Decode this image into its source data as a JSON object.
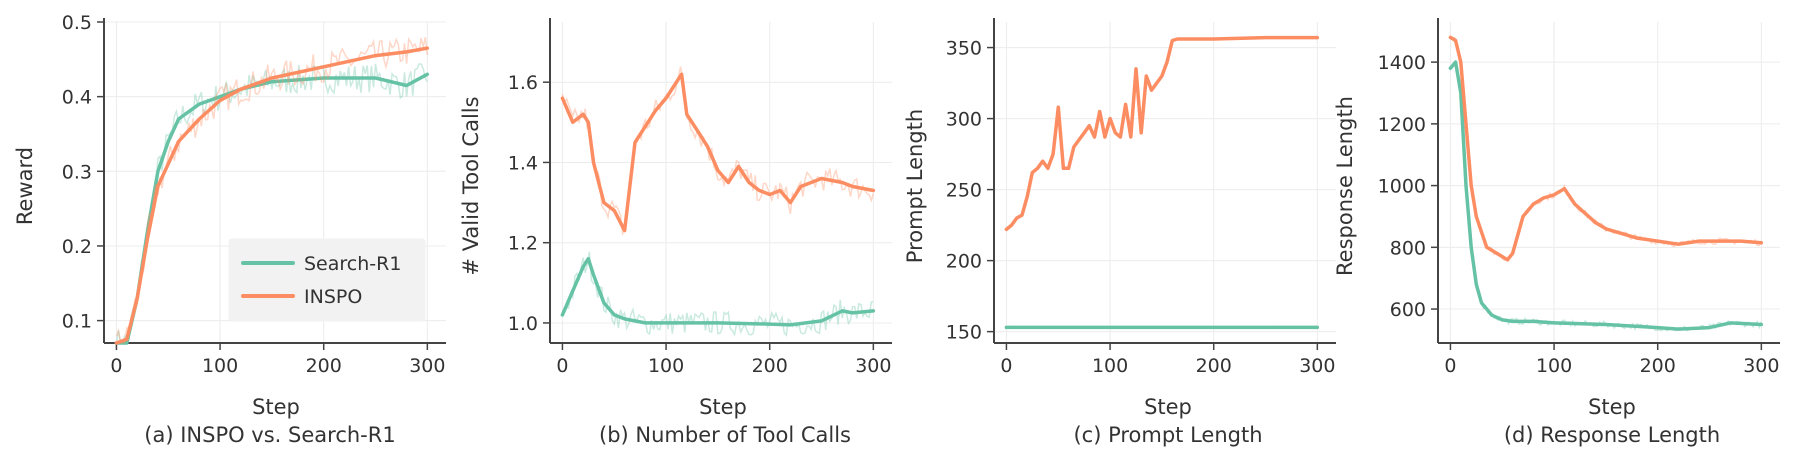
{
  "colors": {
    "search_r1": "#66c2a5",
    "inspo": "#fc8d62",
    "grid": "#ececec",
    "axis": "#444444"
  },
  "legend": {
    "position": "lower-right",
    "panel": 0
  },
  "chart_data": [
    {
      "type": "line",
      "caption": "(a) INSPO vs. Search-R1",
      "xlabel": "Step",
      "ylabel": "Reward",
      "xlim": [
        -12,
        318
      ],
      "ylim": [
        0.07,
        0.5
      ],
      "xticks": [
        0,
        100,
        200,
        300
      ],
      "yticks": [
        0.1,
        0.2,
        0.3,
        0.4,
        0.5
      ],
      "ytick_labels": [
        "0.1",
        "0.2",
        "0.3",
        "0.4",
        "0.5"
      ],
      "grid": true,
      "noise": 0.02,
      "series": [
        {
          "name": "Search-R1",
          "color_key": "search_r1",
          "x": [
            0,
            10,
            20,
            30,
            40,
            50,
            60,
            80,
            100,
            120,
            150,
            200,
            250,
            280,
            300
          ],
          "y": [
            0.07,
            0.07,
            0.13,
            0.22,
            0.3,
            0.34,
            0.37,
            0.39,
            0.4,
            0.41,
            0.42,
            0.425,
            0.425,
            0.415,
            0.43
          ]
        },
        {
          "name": "INSPO",
          "color_key": "inspo",
          "x": [
            0,
            10,
            20,
            30,
            40,
            50,
            60,
            80,
            100,
            120,
            150,
            200,
            250,
            280,
            300
          ],
          "y": [
            0.07,
            0.075,
            0.13,
            0.21,
            0.28,
            0.31,
            0.34,
            0.37,
            0.395,
            0.41,
            0.425,
            0.44,
            0.455,
            0.46,
            0.465
          ]
        }
      ]
    },
    {
      "type": "line",
      "caption": "(b) Number of Tool Calls",
      "xlabel": "Step",
      "ylabel": "# Valid Tool Calls",
      "xlim": [
        -12,
        318
      ],
      "ylim": [
        0.95,
        1.75
      ],
      "xticks": [
        0,
        100,
        200,
        300
      ],
      "yticks": [
        1.0,
        1.2,
        1.4,
        1.6
      ],
      "ytick_labels": [
        "1.0",
        "1.2",
        "1.4",
        "1.6"
      ],
      "grid": true,
      "noise": 0.03,
      "series": [
        {
          "name": "Search-R1",
          "color_key": "search_r1",
          "x": [
            0,
            10,
            20,
            25,
            30,
            40,
            50,
            60,
            80,
            100,
            150,
            200,
            220,
            250,
            270,
            280,
            300
          ],
          "y": [
            1.02,
            1.08,
            1.14,
            1.16,
            1.12,
            1.05,
            1.02,
            1.01,
            1.0,
            1.0,
            1.0,
            0.997,
            0.995,
            1.005,
            1.03,
            1.025,
            1.03
          ]
        },
        {
          "name": "INSPO",
          "color_key": "inspo",
          "x": [
            0,
            10,
            20,
            25,
            30,
            40,
            50,
            60,
            70,
            90,
            100,
            110,
            115,
            120,
            130,
            140,
            150,
            160,
            170,
            180,
            190,
            200,
            210,
            220,
            230,
            250,
            270,
            280,
            300
          ],
          "y": [
            1.56,
            1.5,
            1.52,
            1.5,
            1.4,
            1.3,
            1.28,
            1.23,
            1.45,
            1.53,
            1.56,
            1.6,
            1.62,
            1.52,
            1.48,
            1.44,
            1.38,
            1.35,
            1.39,
            1.35,
            1.33,
            1.32,
            1.33,
            1.3,
            1.34,
            1.36,
            1.35,
            1.34,
            1.33
          ]
        }
      ]
    },
    {
      "type": "line",
      "caption": "(c) Prompt Length",
      "xlabel": "Step",
      "ylabel": "Prompt Length",
      "xlim": [
        -12,
        318
      ],
      "ylim": [
        142,
        368
      ],
      "xticks": [
        0,
        100,
        200,
        300
      ],
      "yticks": [
        150,
        200,
        250,
        300,
        350
      ],
      "ytick_labels": [
        "150",
        "200",
        "250",
        "300",
        "350"
      ],
      "grid": true,
      "noise": 0,
      "series": [
        {
          "name": "Search-R1",
          "color_key": "search_r1",
          "x": [
            0,
            100,
            200,
            300
          ],
          "y": [
            153,
            153,
            153,
            153
          ]
        },
        {
          "name": "INSPO",
          "color_key": "inspo",
          "x": [
            0,
            5,
            10,
            15,
            20,
            25,
            30,
            35,
            40,
            45,
            50,
            55,
            60,
            65,
            70,
            75,
            80,
            85,
            90,
            95,
            100,
            105,
            110,
            115,
            120,
            125,
            130,
            135,
            140,
            145,
            150,
            155,
            160,
            165,
            170,
            200,
            250,
            300
          ],
          "y": [
            222,
            225,
            230,
            232,
            245,
            262,
            265,
            270,
            265,
            275,
            308,
            265,
            265,
            280,
            285,
            290,
            295,
            287,
            305,
            287,
            300,
            290,
            287,
            310,
            287,
            335,
            290,
            330,
            320,
            325,
            330,
            340,
            355,
            356,
            356,
            356,
            357,
            357
          ]
        }
      ]
    },
    {
      "type": "line",
      "caption": "(d) Response Length",
      "xlabel": "Step",
      "ylabel": "Response Length",
      "xlim": [
        -12,
        318
      ],
      "ylim": [
        490,
        1530
      ],
      "xticks": [
        0,
        100,
        200,
        300
      ],
      "yticks": [
        600,
        800,
        1000,
        1200,
        1400
      ],
      "ytick_labels": [
        "600",
        "800",
        "1000",
        "1200",
        "1400"
      ],
      "grid": true,
      "noise": 10,
      "series": [
        {
          "name": "Search-R1",
          "color_key": "search_r1",
          "x": [
            0,
            5,
            10,
            15,
            20,
            25,
            30,
            40,
            50,
            60,
            80,
            100,
            150,
            200,
            220,
            250,
            270,
            300
          ],
          "y": [
            1380,
            1400,
            1300,
            1000,
            800,
            680,
            620,
            580,
            565,
            560,
            560,
            555,
            550,
            540,
            535,
            540,
            555,
            550
          ]
        },
        {
          "name": "INSPO",
          "color_key": "inspo",
          "x": [
            0,
            5,
            10,
            15,
            20,
            25,
            30,
            35,
            40,
            45,
            50,
            55,
            60,
            70,
            80,
            90,
            100,
            110,
            120,
            130,
            140,
            150,
            160,
            180,
            200,
            220,
            240,
            260,
            280,
            300
          ],
          "y": [
            1480,
            1470,
            1400,
            1200,
            1000,
            900,
            850,
            800,
            790,
            780,
            770,
            760,
            780,
            900,
            940,
            960,
            970,
            990,
            940,
            910,
            880,
            860,
            850,
            830,
            820,
            810,
            820,
            820,
            820,
            815
          ]
        }
      ]
    }
  ]
}
